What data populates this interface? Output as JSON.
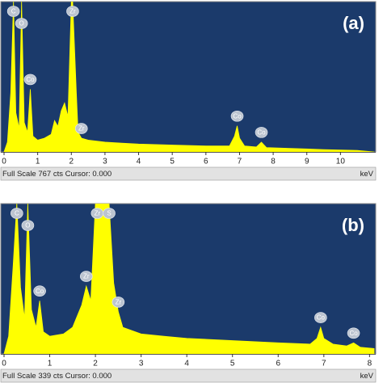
{
  "chart_data": [
    {
      "type": "area",
      "title": "(a)",
      "x": [
        0,
        0.1,
        0.2,
        0.28,
        0.35,
        0.45,
        0.52,
        0.6,
        0.7,
        0.78,
        0.86,
        1.0,
        1.2,
        1.4,
        1.5,
        1.6,
        1.7,
        1.8,
        1.9,
        2.0,
        2.04,
        2.15,
        2.2,
        2.3,
        2.5,
        3.0,
        3.5,
        4.0,
        5.0,
        6.0,
        6.7,
        6.85,
        6.93,
        7.0,
        7.15,
        7.5,
        7.65,
        7.8,
        8.5,
        9.5,
        10.5,
        11
      ],
      "values": [
        0,
        50,
        300,
        767,
        200,
        120,
        767,
        150,
        100,
        320,
        80,
        60,
        70,
        90,
        160,
        130,
        210,
        250,
        180,
        767,
        767,
        300,
        100,
        70,
        60,
        50,
        45,
        40,
        35,
        30,
        30,
        80,
        133,
        70,
        30,
        25,
        50,
        22,
        18,
        12,
        8,
        0
      ],
      "color": "#ffff00",
      "xlim": [
        0,
        11
      ],
      "ylim": [
        0,
        767
      ],
      "xticks": [
        0,
        1,
        2,
        3,
        4,
        5,
        6,
        7,
        8,
        9,
        10
      ],
      "x_label": "keV",
      "footer": "Full Scale 767 cts Cursor: 0.000",
      "annotations": [
        {
          "text": "C",
          "x": 0.28
        },
        {
          "text": "O",
          "x": 0.52
        },
        {
          "text": "Co",
          "x": 0.78
        },
        {
          "text": "Zr",
          "x": 2.04
        },
        {
          "text": "Zr",
          "x": 2.3
        },
        {
          "text": "Co",
          "x": 6.93
        },
        {
          "text": "Co",
          "x": 7.65
        }
      ]
    },
    {
      "type": "area",
      "title": "(b)",
      "x": [
        0,
        0.1,
        0.2,
        0.28,
        0.36,
        0.45,
        0.52,
        0.6,
        0.7,
        0.78,
        0.86,
        1.0,
        1.3,
        1.5,
        1.7,
        1.8,
        1.9,
        2.0,
        2.04,
        2.15,
        2.3,
        2.4,
        2.5,
        2.6,
        3.0,
        3.5,
        4.0,
        5.0,
        6.0,
        6.7,
        6.85,
        6.93,
        7.0,
        7.2,
        7.5,
        7.65,
        7.8,
        8.1
      ],
      "values": [
        0,
        40,
        200,
        339,
        150,
        80,
        339,
        100,
        60,
        120,
        50,
        40,
        45,
        60,
        110,
        153,
        120,
        339,
        339,
        339,
        339,
        160,
        95,
        60,
        45,
        40,
        35,
        30,
        25,
        22,
        35,
        60,
        35,
        22,
        18,
        25,
        15,
        12
      ],
      "color": "#ffff00",
      "xlim": [
        0,
        8.1
      ],
      "ylim": [
        0,
        339
      ],
      "xticks": [
        0,
        1,
        2,
        3,
        4,
        5,
        6,
        7,
        8
      ],
      "x_label": "keV",
      "footer": "Full Scale 339 cts Cursor: 0.000",
      "annotations": [
        {
          "text": "C",
          "x": 0.28
        },
        {
          "text": "O",
          "x": 0.52
        },
        {
          "text": "Co",
          "x": 0.78
        },
        {
          "text": "Zr",
          "x": 1.8
        },
        {
          "text": "Zr",
          "x": 2.04
        },
        {
          "text": "S",
          "x": 2.3
        },
        {
          "text": "Zr",
          "x": 2.5
        },
        {
          "text": "Co",
          "x": 6.93
        },
        {
          "text": "Co",
          "x": 7.65
        }
      ]
    }
  ]
}
